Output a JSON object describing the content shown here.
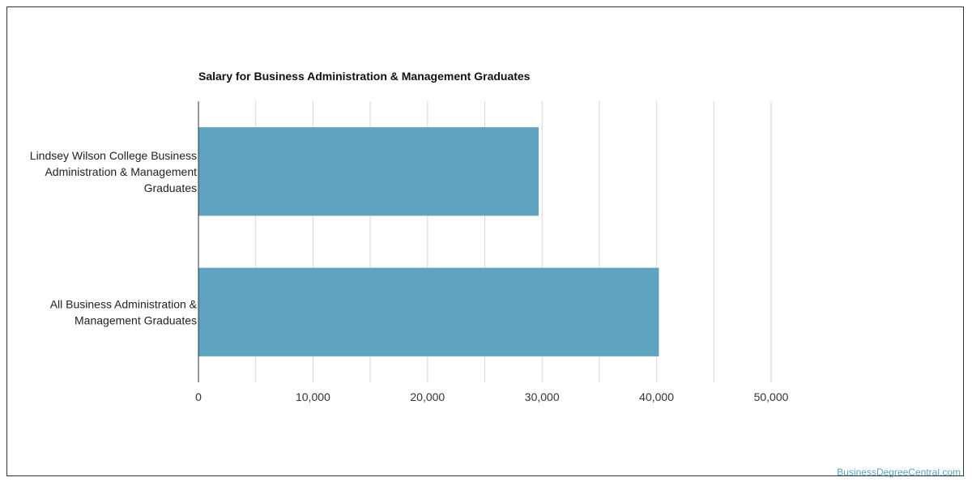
{
  "credit": "BusinessDegreeCentral.com",
  "chart_data": {
    "type": "bar",
    "orientation": "horizontal",
    "title": "Salary for Business Administration & Management Graduates",
    "categories": [
      [
        "Lindsey Wilson College Business",
        "Administration & Management",
        "Graduates"
      ],
      [
        "All Business Administration &",
        "Management Graduates"
      ]
    ],
    "values": [
      29700,
      40200
    ],
    "xlim": [
      0,
      50000
    ],
    "ticks": [
      0,
      10000,
      20000,
      30000,
      40000,
      50000
    ],
    "tick_labels": [
      "0",
      "10,000",
      "20,000",
      "30,000",
      "40,000",
      "50,000"
    ],
    "grid": true,
    "bar_color": "#5ea3bf",
    "grid_color": "#d6d6d6",
    "axis_color": "#333333"
  }
}
